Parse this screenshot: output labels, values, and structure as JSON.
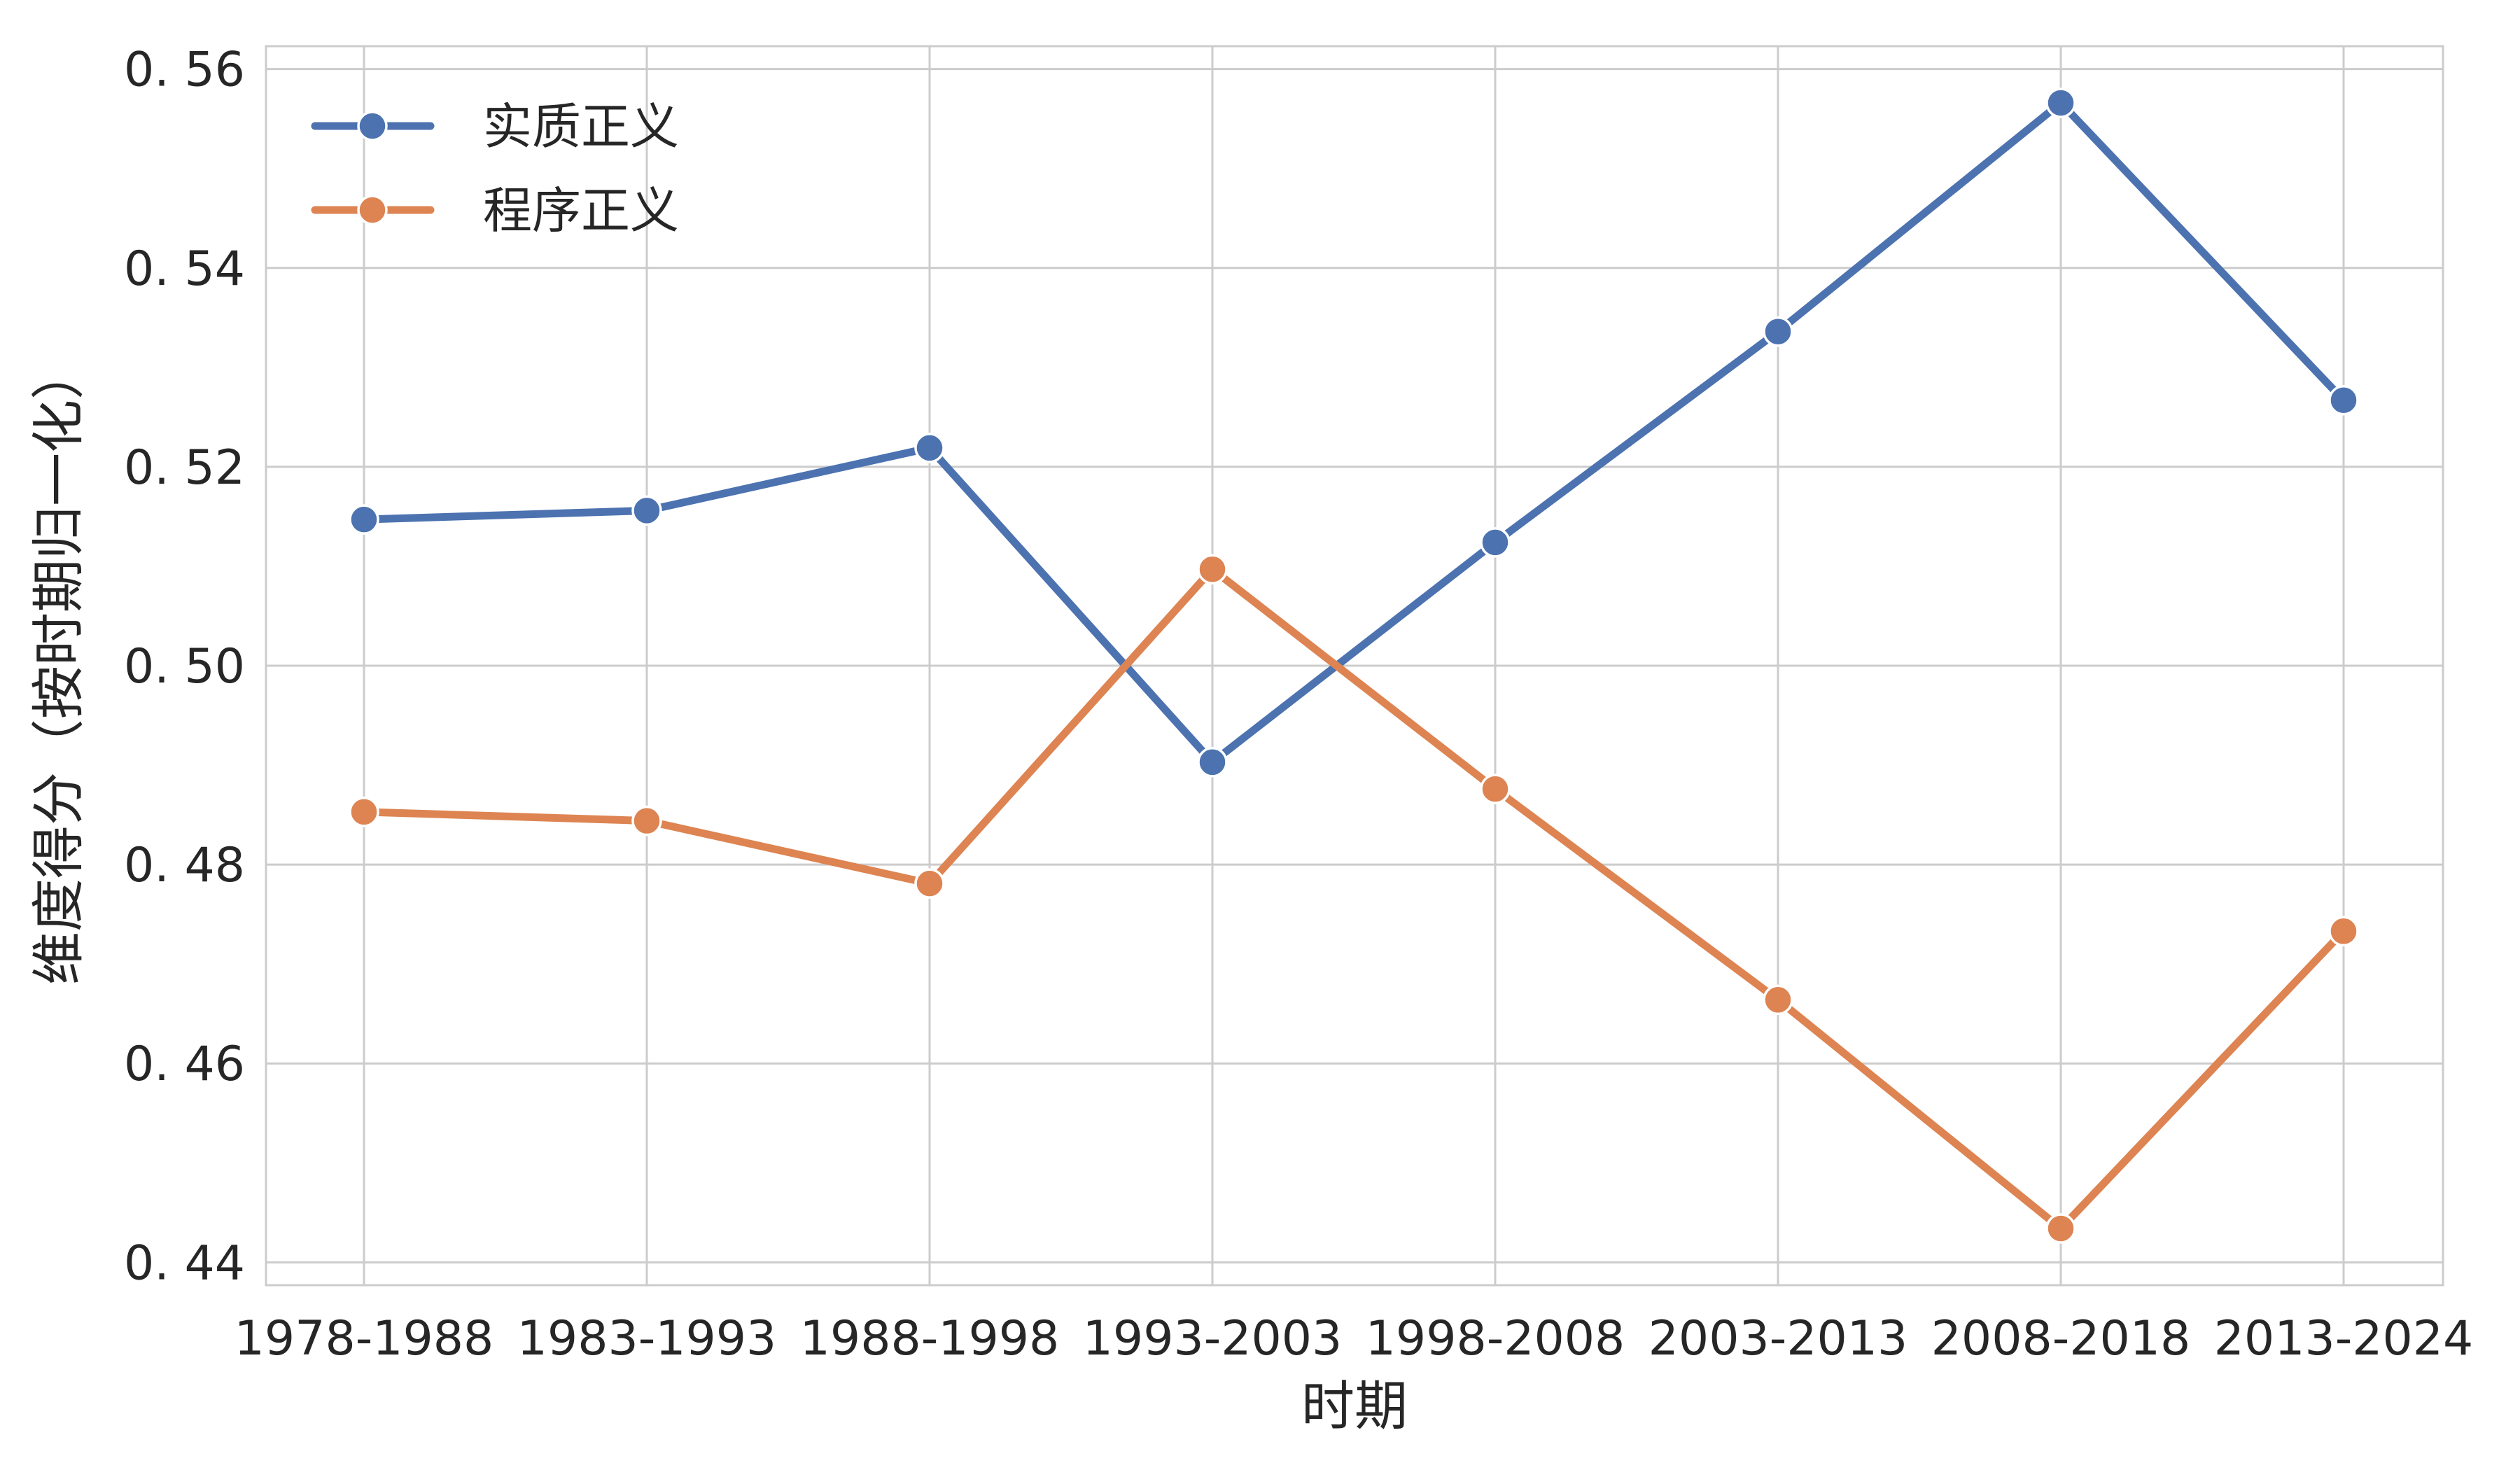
{
  "chart_data": {
    "type": "line",
    "categories": [
      "1978-1988",
      "1983-1993",
      "1988-1998",
      "1993-2003",
      "1998-2008",
      "2003-2013",
      "2008-2018",
      "2013-2024"
    ],
    "series": [
      {
        "name": "实质正义",
        "color": "#4c72b0",
        "values": [
          0.5147,
          0.5156,
          0.5219,
          0.4903,
          0.5124,
          0.5336,
          0.5566,
          0.5267
        ]
      },
      {
        "name": "程序正义",
        "color": "#dd8452",
        "values": [
          0.4853,
          0.4844,
          0.4781,
          0.5097,
          0.4876,
          0.4664,
          0.4434,
          0.4733
        ]
      }
    ],
    "xlabel": "时期",
    "ylabel": "维度得分（按时期归一化）",
    "ylim": [
      0.4377,
      0.5623
    ],
    "yticks": [
      "0.44",
      "0.46",
      "0.48",
      "0.50",
      "0.52",
      "0.54",
      "0.56"
    ],
    "grid": true,
    "legend_position": "top-left"
  }
}
